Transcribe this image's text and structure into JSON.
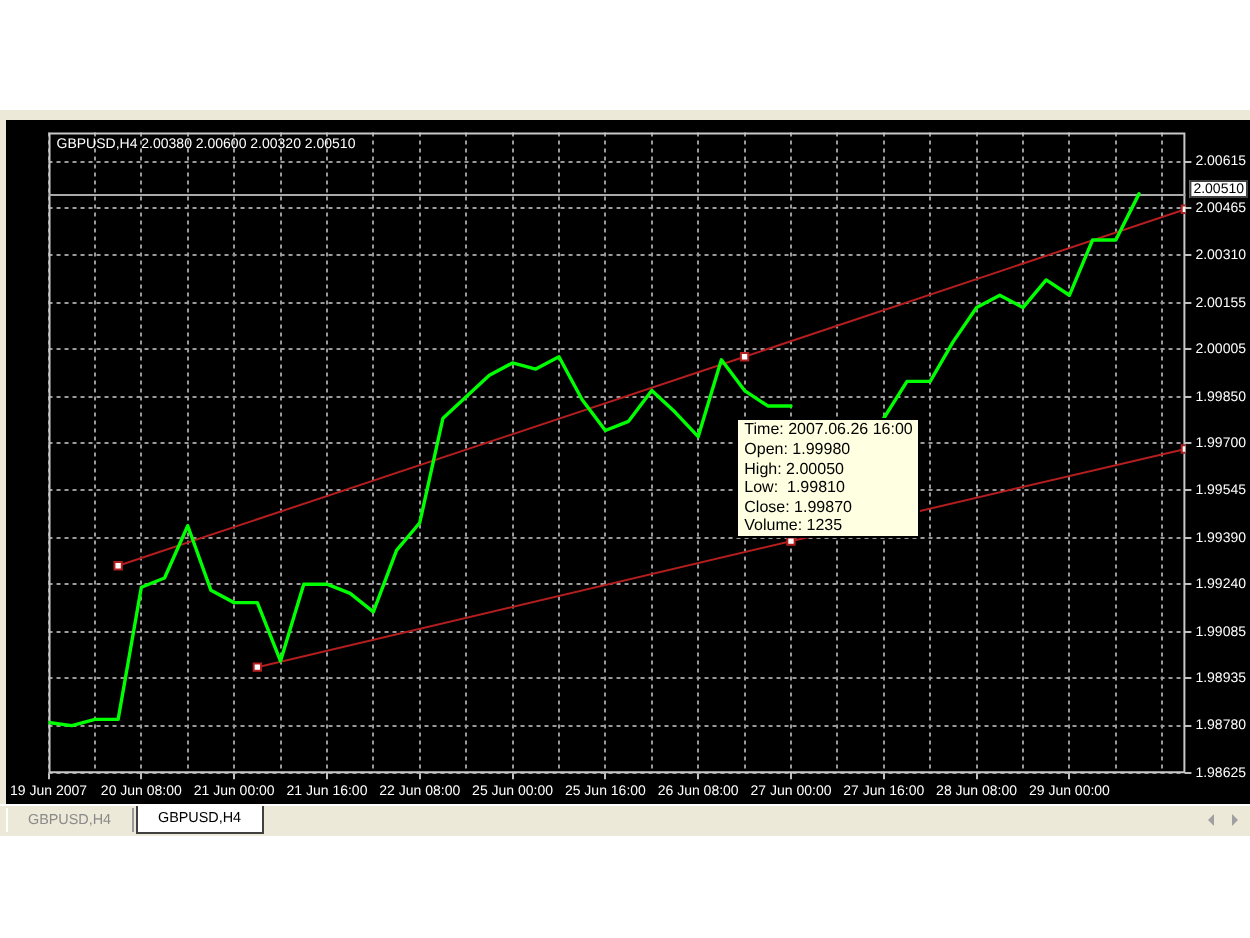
{
  "chart_data": {
    "type": "line",
    "title": "GBPUSD,H4 2.00380 2.00600 2.00320 2.00510",
    "categories": [
      "19 Jun 2007",
      null,
      null,
      null,
      "20 Jun 08:00",
      null,
      null,
      null,
      "21 Jun 00:00",
      null,
      null,
      null,
      "21 Jun 16:00",
      null,
      null,
      null,
      "22 Jun 08:00",
      null,
      null,
      null,
      "25 Jun 00:00",
      null,
      null,
      null,
      "25 Jun 16:00",
      null,
      null,
      null,
      "26 Jun 08:00",
      null,
      null,
      null,
      "27 Jun 00:00",
      null,
      null,
      null,
      "27 Jun 16:00",
      null,
      null,
      null,
      "28 Jun 08:00",
      null,
      null,
      null,
      "29 Jun 00:00",
      null,
      null,
      null,
      null,
      null
    ],
    "series": [
      {
        "color": "#00ff00",
        "values": [
          1.9879,
          1.9878,
          1.988,
          1.988,
          1.9923,
          1.9926,
          1.9943,
          1.9922,
          1.9918,
          1.9918,
          1.9899,
          1.9924,
          1.9924,
          1.9921,
          1.9915,
          1.9935,
          1.9944,
          1.9978,
          1.9985,
          1.9992,
          1.9996,
          1.9994,
          1.9998,
          1.9984,
          1.9974,
          1.9977,
          1.9987,
          1.998,
          1.9972,
          1.9997,
          1.9987,
          1.9982,
          1.9982,
          null,
          null,
          null,
          1.9978,
          1.999,
          1.999,
          2.0003,
          2.0014,
          2.0018,
          2.0014,
          2.0023,
          2.0018,
          2.0036,
          2.0036,
          2.0051,
          null,
          null
        ]
      },
      {
        "color": "#b41e1e",
        "marker": "square",
        "values": [
          null,
          null,
          null,
          1.993,
          null,
          null,
          null,
          null,
          null,
          null,
          null,
          null,
          null,
          null,
          null,
          null,
          null,
          null,
          null,
          null,
          null,
          null,
          null,
          null,
          null,
          null,
          null,
          null,
          null,
          null,
          1.9998,
          null,
          null,
          null,
          null,
          null,
          null,
          null,
          null,
          null,
          null,
          null,
          null,
          null,
          null,
          null,
          null,
          null,
          null,
          2.0046
        ]
      },
      {
        "color": "#b41e1e",
        "marker": "square",
        "values": [
          null,
          null,
          null,
          null,
          null,
          null,
          null,
          null,
          null,
          1.9897,
          null,
          null,
          null,
          null,
          null,
          null,
          null,
          null,
          null,
          null,
          null,
          null,
          null,
          null,
          null,
          null,
          null,
          null,
          null,
          null,
          null,
          null,
          1.9938,
          null,
          null,
          null,
          null,
          null,
          null,
          null,
          null,
          null,
          null,
          null,
          null,
          null,
          null,
          null,
          null,
          1.9968
        ]
      }
    ],
    "ylim": [
      1.98625,
      2.0071
    ],
    "yticks": [
      1.98625,
      {
        "value": 1.9878,
        "label": "1.98780"
      },
      1.98935,
      1.99085,
      {
        "value": 1.9924,
        "label": "1.99240"
      },
      {
        "value": 1.9939,
        "label": "1.99390"
      },
      1.99545,
      {
        "value": 1.997,
        "label": "1.99700"
      },
      {
        "value": 1.9985,
        "label": "1.99850"
      },
      2.00005,
      2.00155,
      {
        "value": 2.0031,
        "label": "2.00310"
      },
      2.00465,
      2.00615
    ],
    "grid": true,
    "ref_lines": [
      {
        "axis": "y",
        "value": 2.0051,
        "label": "2.00510",
        "color": "#a9a9a9"
      }
    ],
    "annotations": [
      "Time: 2007.06.26 16:00",
      "Open: 1.99980",
      "High: 2.00050",
      "Low:  1.99810",
      "Close: 1.99870",
      "Volume: 1235",
      "GBPUSD,H4",
      "GBPUSD,H4"
    ]
  }
}
